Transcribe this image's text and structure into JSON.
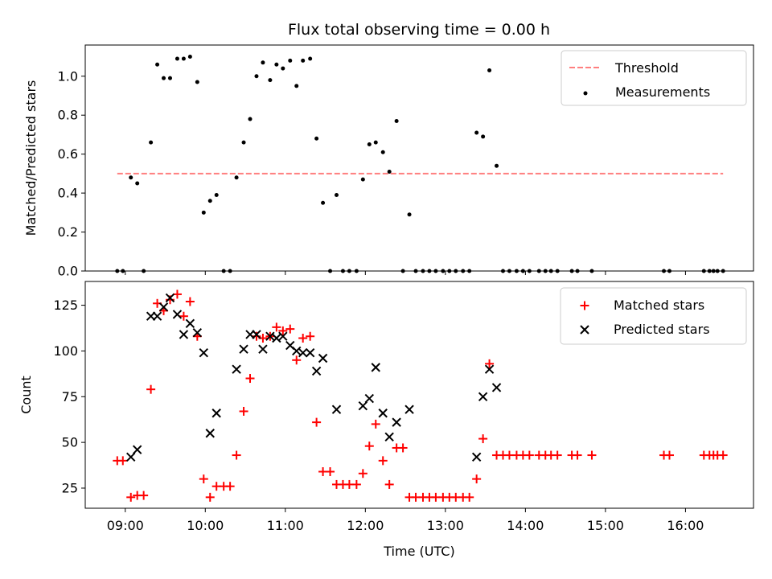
{
  "title": "Flux total observing time = 0.00 h",
  "chart_data": [
    {
      "type": "scatter",
      "ylabel": "Matched/Predicted stars",
      "xlabel": "",
      "x_unit": "hours (UTC)",
      "xlim": [
        8.5,
        16.85
      ],
      "ylim": [
        0,
        1.16
      ],
      "yticks": [
        0.0,
        0.2,
        0.4,
        0.6,
        0.8,
        1.0
      ],
      "ytick_labels": [
        "0.0",
        "0.2",
        "0.4",
        "0.6",
        "0.8",
        "1.0"
      ],
      "legend_placement": "top-right",
      "threshold": {
        "name": "Threshold",
        "value": 0.5,
        "x_range": [
          8.9,
          16.47
        ],
        "color": "#ff7f7f",
        "style": "dashed"
      },
      "series": [
        {
          "name": "Measurements",
          "marker": "dot",
          "color": "#000000",
          "points": [
            [
              8.9,
              0.0
            ],
            [
              8.97,
              0.0
            ],
            [
              9.07,
              0.48
            ],
            [
              9.15,
              0.45
            ],
            [
              9.23,
              0.0
            ],
            [
              9.32,
              0.66
            ],
            [
              9.4,
              1.06
            ],
            [
              9.48,
              0.99
            ],
            [
              9.56,
              0.99
            ],
            [
              9.65,
              1.09
            ],
            [
              9.73,
              1.09
            ],
            [
              9.81,
              1.1
            ],
            [
              9.9,
              0.97
            ],
            [
              9.98,
              0.3
            ],
            [
              10.06,
              0.36
            ],
            [
              10.14,
              0.39
            ],
            [
              10.23,
              0.0
            ],
            [
              10.31,
              0.0
            ],
            [
              10.39,
              0.48
            ],
            [
              10.48,
              0.66
            ],
            [
              10.56,
              0.78
            ],
            [
              10.64,
              1.0
            ],
            [
              10.72,
              1.07
            ],
            [
              10.81,
              0.98
            ],
            [
              10.89,
              1.06
            ],
            [
              10.97,
              1.04
            ],
            [
              11.06,
              1.08
            ],
            [
              11.14,
              0.95
            ],
            [
              11.22,
              1.08
            ],
            [
              11.31,
              1.09
            ],
            [
              11.39,
              0.68
            ],
            [
              11.47,
              0.35
            ],
            [
              11.56,
              0.0
            ],
            [
              11.64,
              0.39
            ],
            [
              11.72,
              0.0
            ],
            [
              11.8,
              0.0
            ],
            [
              11.89,
              0.0
            ],
            [
              11.97,
              0.47
            ],
            [
              12.05,
              0.65
            ],
            [
              12.13,
              0.66
            ],
            [
              12.22,
              0.61
            ],
            [
              12.3,
              0.51
            ],
            [
              12.39,
              0.77
            ],
            [
              12.47,
              0.0
            ],
            [
              12.55,
              0.29
            ],
            [
              12.63,
              0.0
            ],
            [
              12.72,
              0.0
            ],
            [
              12.8,
              0.0
            ],
            [
              12.88,
              0.0
            ],
            [
              12.97,
              0.0
            ],
            [
              13.05,
              0.0
            ],
            [
              13.13,
              0.0
            ],
            [
              13.22,
              0.0
            ],
            [
              13.3,
              0.0
            ],
            [
              13.39,
              0.71
            ],
            [
              13.47,
              0.69
            ],
            [
              13.55,
              1.03
            ],
            [
              13.64,
              0.54
            ],
            [
              13.72,
              0.0
            ],
            [
              13.8,
              0.0
            ],
            [
              13.89,
              0.0
            ],
            [
              13.97,
              0.0
            ],
            [
              14.05,
              0.0
            ],
            [
              14.17,
              0.0
            ],
            [
              14.25,
              0.0
            ],
            [
              14.32,
              0.0
            ],
            [
              14.4,
              0.0
            ],
            [
              14.58,
              0.0
            ],
            [
              14.65,
              0.0
            ],
            [
              14.83,
              0.0
            ],
            [
              15.73,
              0.0
            ],
            [
              15.8,
              0.0
            ],
            [
              16.23,
              0.0
            ],
            [
              16.3,
              0.0
            ],
            [
              16.35,
              0.0
            ],
            [
              16.4,
              0.0
            ],
            [
              16.47,
              0.0
            ]
          ]
        }
      ]
    },
    {
      "type": "scatter",
      "ylabel": "Count",
      "xlabel": "Time (UTC)",
      "x_unit": "hours (UTC)",
      "xlim": [
        8.5,
        16.85
      ],
      "ylim": [
        14,
        138
      ],
      "yticks": [
        25,
        50,
        75,
        100,
        125
      ],
      "ytick_labels": [
        "25",
        "50",
        "75",
        "100",
        "125"
      ],
      "xticks": [
        9,
        10,
        11,
        12,
        13,
        14,
        15,
        16
      ],
      "xtick_labels": [
        "09:00",
        "10:00",
        "11:00",
        "12:00",
        "13:00",
        "14:00",
        "15:00",
        "16:00"
      ],
      "legend_placement": "top-right",
      "series": [
        {
          "name": "Matched stars",
          "marker": "plus",
          "color": "#ff0000",
          "points": [
            [
              8.9,
              40
            ],
            [
              8.97,
              40
            ],
            [
              9.07,
              20
            ],
            [
              9.15,
              21
            ],
            [
              9.23,
              21
            ],
            [
              9.32,
              79
            ],
            [
              9.4,
              126
            ],
            [
              9.48,
              122
            ],
            [
              9.56,
              128
            ],
            [
              9.65,
              131
            ],
            [
              9.73,
              119
            ],
            [
              9.81,
              127
            ],
            [
              9.9,
              108
            ],
            [
              9.98,
              30
            ],
            [
              10.06,
              20
            ],
            [
              10.14,
              26
            ],
            [
              10.23,
              26
            ],
            [
              10.31,
              26
            ],
            [
              10.39,
              43
            ],
            [
              10.48,
              67
            ],
            [
              10.56,
              85
            ],
            [
              10.64,
              108
            ],
            [
              10.72,
              107
            ],
            [
              10.81,
              108
            ],
            [
              10.89,
              113
            ],
            [
              10.97,
              111
            ],
            [
              11.06,
              112
            ],
            [
              11.14,
              95
            ],
            [
              11.22,
              107
            ],
            [
              11.31,
              108
            ],
            [
              11.39,
              61
            ],
            [
              11.47,
              34
            ],
            [
              11.56,
              34
            ],
            [
              11.64,
              27
            ],
            [
              11.72,
              27
            ],
            [
              11.8,
              27
            ],
            [
              11.89,
              27
            ],
            [
              11.97,
              33
            ],
            [
              12.05,
              48
            ],
            [
              12.13,
              60
            ],
            [
              12.22,
              40
            ],
            [
              12.3,
              27
            ],
            [
              12.39,
              47
            ],
            [
              12.47,
              47
            ],
            [
              12.55,
              20
            ],
            [
              12.63,
              20
            ],
            [
              12.72,
              20
            ],
            [
              12.8,
              20
            ],
            [
              12.88,
              20
            ],
            [
              12.97,
              20
            ],
            [
              13.05,
              20
            ],
            [
              13.13,
              20
            ],
            [
              13.22,
              20
            ],
            [
              13.3,
              20
            ],
            [
              13.39,
              30
            ],
            [
              13.47,
              52
            ],
            [
              13.55,
              93
            ],
            [
              13.64,
              43
            ],
            [
              13.72,
              43
            ],
            [
              13.8,
              43
            ],
            [
              13.89,
              43
            ],
            [
              13.97,
              43
            ],
            [
              14.05,
              43
            ],
            [
              14.17,
              43
            ],
            [
              14.25,
              43
            ],
            [
              14.32,
              43
            ],
            [
              14.4,
              43
            ],
            [
              14.58,
              43
            ],
            [
              14.65,
              43
            ],
            [
              14.83,
              43
            ],
            [
              15.73,
              43
            ],
            [
              15.8,
              43
            ],
            [
              16.23,
              43
            ],
            [
              16.3,
              43
            ],
            [
              16.35,
              43
            ],
            [
              16.4,
              43
            ],
            [
              16.47,
              43
            ]
          ]
        },
        {
          "name": "Predicted stars",
          "marker": "x",
          "color": "#000000",
          "points": [
            [
              9.07,
              42
            ],
            [
              9.15,
              46
            ],
            [
              9.32,
              119
            ],
            [
              9.4,
              119
            ],
            [
              9.48,
              124
            ],
            [
              9.56,
              129
            ],
            [
              9.65,
              120
            ],
            [
              9.73,
              109
            ],
            [
              9.81,
              115
            ],
            [
              9.9,
              110
            ],
            [
              9.98,
              99
            ],
            [
              10.06,
              55
            ],
            [
              10.14,
              66
            ],
            [
              10.39,
              90
            ],
            [
              10.48,
              101
            ],
            [
              10.56,
              109
            ],
            [
              10.64,
              109
            ],
            [
              10.72,
              101
            ],
            [
              10.81,
              108
            ],
            [
              10.89,
              107
            ],
            [
              10.97,
              108
            ],
            [
              11.06,
              103
            ],
            [
              11.14,
              100
            ],
            [
              11.22,
              99
            ],
            [
              11.31,
              99
            ],
            [
              11.39,
              89
            ],
            [
              11.47,
              96
            ],
            [
              11.64,
              68
            ],
            [
              11.97,
              70
            ],
            [
              12.05,
              74
            ],
            [
              12.13,
              91
            ],
            [
              12.22,
              66
            ],
            [
              12.3,
              53
            ],
            [
              12.39,
              61
            ],
            [
              12.55,
              68
            ],
            [
              13.39,
              42
            ],
            [
              13.47,
              75
            ],
            [
              13.55,
              90
            ],
            [
              13.64,
              80
            ]
          ]
        }
      ]
    }
  ]
}
